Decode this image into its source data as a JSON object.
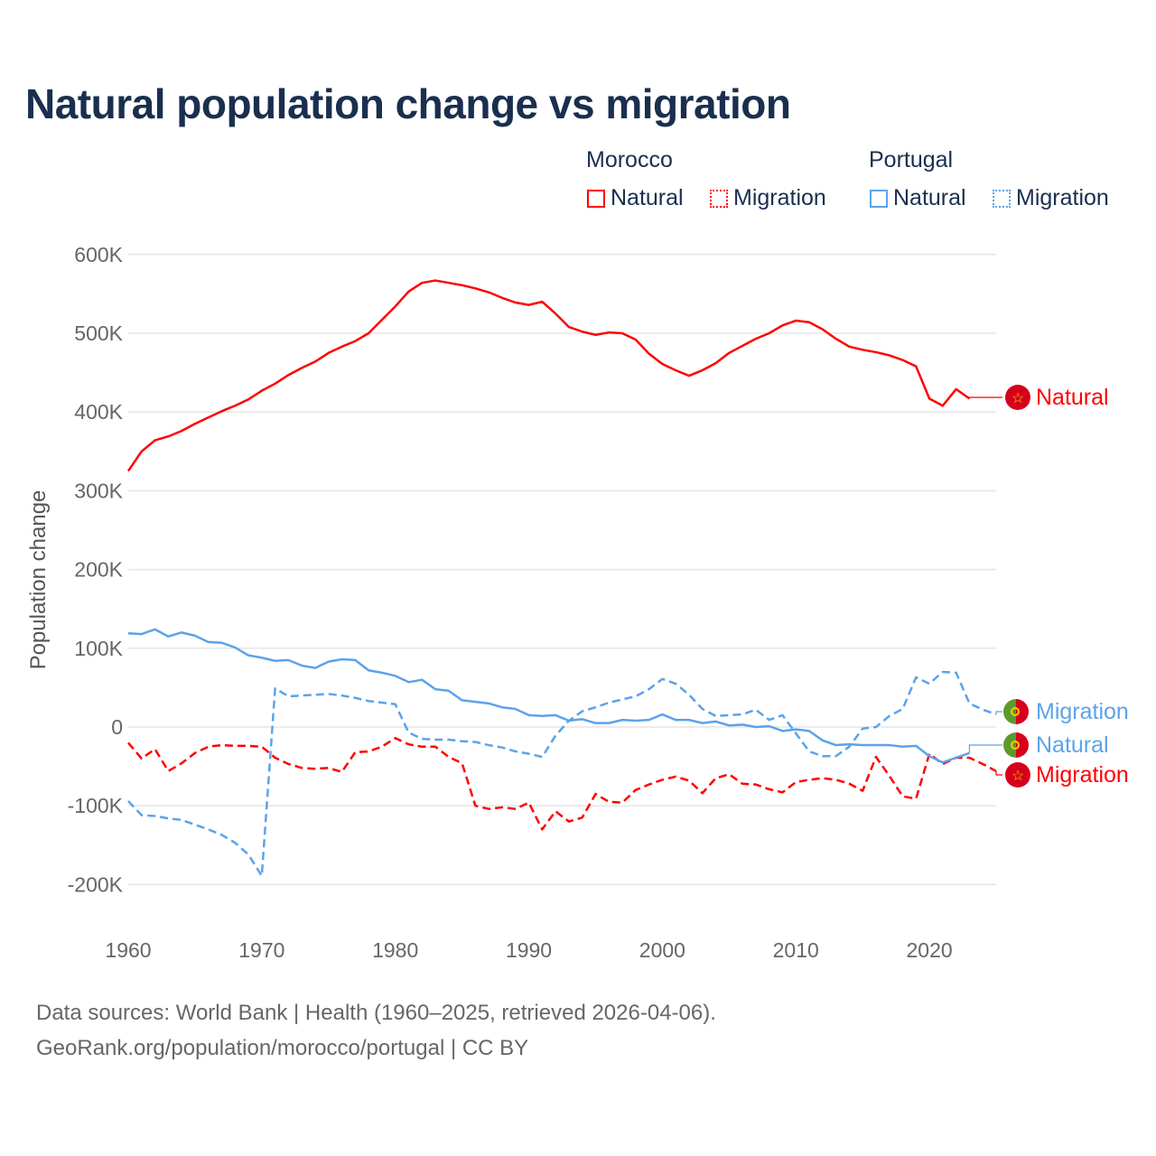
{
  "chart_data": {
    "type": "line",
    "title": "Natural population change vs migration",
    "ylabel": "Population change",
    "xlabel": "",
    "ylim": [
      -230000,
      620000
    ],
    "xlim": [
      1960,
      2025
    ],
    "grid": true,
    "yticks": [
      {
        "v": 600000,
        "label": "600K"
      },
      {
        "v": 500000,
        "label": "500K"
      },
      {
        "v": 400000,
        "label": "400K"
      },
      {
        "v": 300000,
        "label": "300K"
      },
      {
        "v": 200000,
        "label": "200K"
      },
      {
        "v": 100000,
        "label": "100K"
      },
      {
        "v": 0,
        "label": "0"
      },
      {
        "v": -100000,
        "label": "-100K"
      },
      {
        "v": -200000,
        "label": "-200K"
      }
    ],
    "xticks": [
      1960,
      1970,
      1980,
      1990,
      2000,
      2010,
      2020
    ],
    "legend": {
      "placement": "top-right",
      "groups": [
        {
          "label": "Morocco",
          "items": [
            "Natural",
            "Migration"
          ]
        },
        {
          "label": "Portugal",
          "items": [
            "Natural",
            "Migration"
          ]
        }
      ]
    },
    "x_start": 1960,
    "series": [
      {
        "name": "Morocco Natural",
        "country": "Morocco",
        "kind": "Natural",
        "color": "#ff0000",
        "dashed": false,
        "end_label": "Natural",
        "flag": "morocco",
        "values": [
          325,
          350,
          364,
          369,
          376,
          385,
          393,
          401,
          408,
          416,
          427,
          436,
          447,
          456,
          464,
          475,
          483,
          490,
          500,
          517,
          534,
          553,
          564,
          567,
          564,
          561,
          557,
          552,
          545,
          539,
          536,
          540,
          525,
          508,
          502,
          498,
          501,
          500,
          492,
          474,
          461,
          453,
          446,
          453,
          462,
          475,
          484,
          493,
          500,
          510,
          516,
          514,
          505,
          493,
          483,
          479,
          476,
          472,
          466,
          458,
          417,
          408,
          429,
          417
        ]
      },
      {
        "name": "Morocco Migration",
        "country": "Morocco",
        "kind": "Migration",
        "color": "#ff0000",
        "dashed": true,
        "end_label": "Migration",
        "flag": "morocco",
        "values": [
          -20,
          -40,
          -28,
          -56,
          -46,
          -33,
          -25,
          -23,
          -24,
          -24,
          -25,
          -39,
          -47,
          -52,
          -53,
          -52,
          -57,
          -32,
          -31,
          -25,
          -14,
          -22,
          -25,
          -25,
          -38,
          -46,
          -100,
          -104,
          -102,
          -104,
          -96,
          -130,
          -107,
          -120,
          -115,
          -85,
          -95,
          -96,
          -80,
          -73,
          -67,
          -63,
          -68,
          -84,
          -65,
          -60,
          -72,
          -73,
          -79,
          -83,
          -70,
          -67,
          -65,
          -67,
          -72,
          -81,
          -38,
          -62,
          -88,
          -91,
          -34,
          -47,
          -39,
          -39,
          -47,
          -56
        ]
      },
      {
        "name": "Portugal Natural",
        "country": "Portugal",
        "kind": "Natural",
        "color": "#5ba3ea",
        "dashed": false,
        "end_label": "Natural",
        "flag": "portugal",
        "values": [
          119,
          118,
          124,
          115,
          120,
          116,
          108,
          107,
          101,
          91,
          88,
          84,
          85,
          78,
          75,
          83,
          86,
          85,
          72,
          69,
          65,
          57,
          60,
          48,
          46,
          34,
          32,
          30,
          25,
          23,
          15,
          14,
          15,
          8,
          10,
          5,
          5,
          9,
          8,
          9,
          16,
          9,
          9,
          5,
          7,
          2,
          3,
          0,
          1,
          -5,
          -3,
          -5,
          -17,
          -23,
          -22,
          -23,
          -23,
          -23,
          -25,
          -24,
          -37,
          -45,
          -39,
          -33
        ]
      },
      {
        "name": "Portugal Migration",
        "country": "Portugal",
        "kind": "Migration",
        "color": "#5ba3ea",
        "dashed": true,
        "end_label": "Migration",
        "flag": "portugal",
        "values": [
          -94,
          -112,
          -113,
          -116,
          -118,
          -124,
          -130,
          -137,
          -147,
          -162,
          -189,
          49,
          39,
          40,
          41,
          42,
          40,
          37,
          33,
          31,
          29,
          -7,
          -15,
          -16,
          -16,
          -18,
          -19,
          -23,
          -26,
          -31,
          -34,
          -38,
          -11,
          8,
          20,
          25,
          31,
          35,
          39,
          48,
          61,
          55,
          41,
          23,
          14,
          15,
          16,
          22,
          9,
          15,
          -8,
          -31,
          -37,
          -37,
          -25,
          -2,
          0,
          14,
          23,
          63,
          55,
          70,
          69,
          30,
          22,
          16
        ]
      }
    ],
    "value_unit": "thousands"
  },
  "footer": {
    "line1": "Data sources: World Bank | Health (1960–2025, retrieved 2026-04-06).",
    "line2": "GeoRank.org/population/morocco/portugal | CC BY"
  }
}
